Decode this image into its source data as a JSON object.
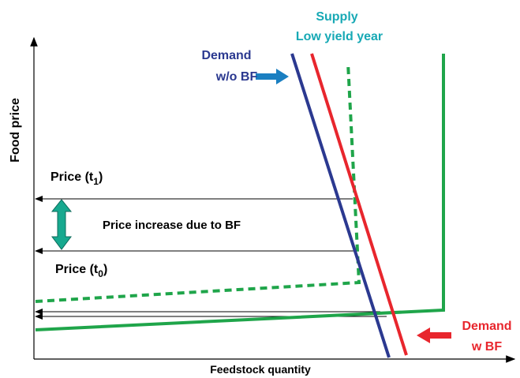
{
  "labels": {
    "supply": {
      "line1": "Supply",
      "line2": "Low yield year"
    },
    "demand_without": {
      "line1": "Demand",
      "line2": "w/o BF"
    },
    "demand_with": {
      "line1": "Demand",
      "line2": "w BF"
    },
    "y_axis": "Food price",
    "x_axis": "Feedstock quantity",
    "price_t1": {
      "base": "Price (t",
      "subscript": "1",
      "suffix": ")"
    },
    "price_t0": {
      "base": "Price (t",
      "subscript": "0",
      "suffix": ")"
    },
    "price_increase": "Price increase due to BF"
  }
}
